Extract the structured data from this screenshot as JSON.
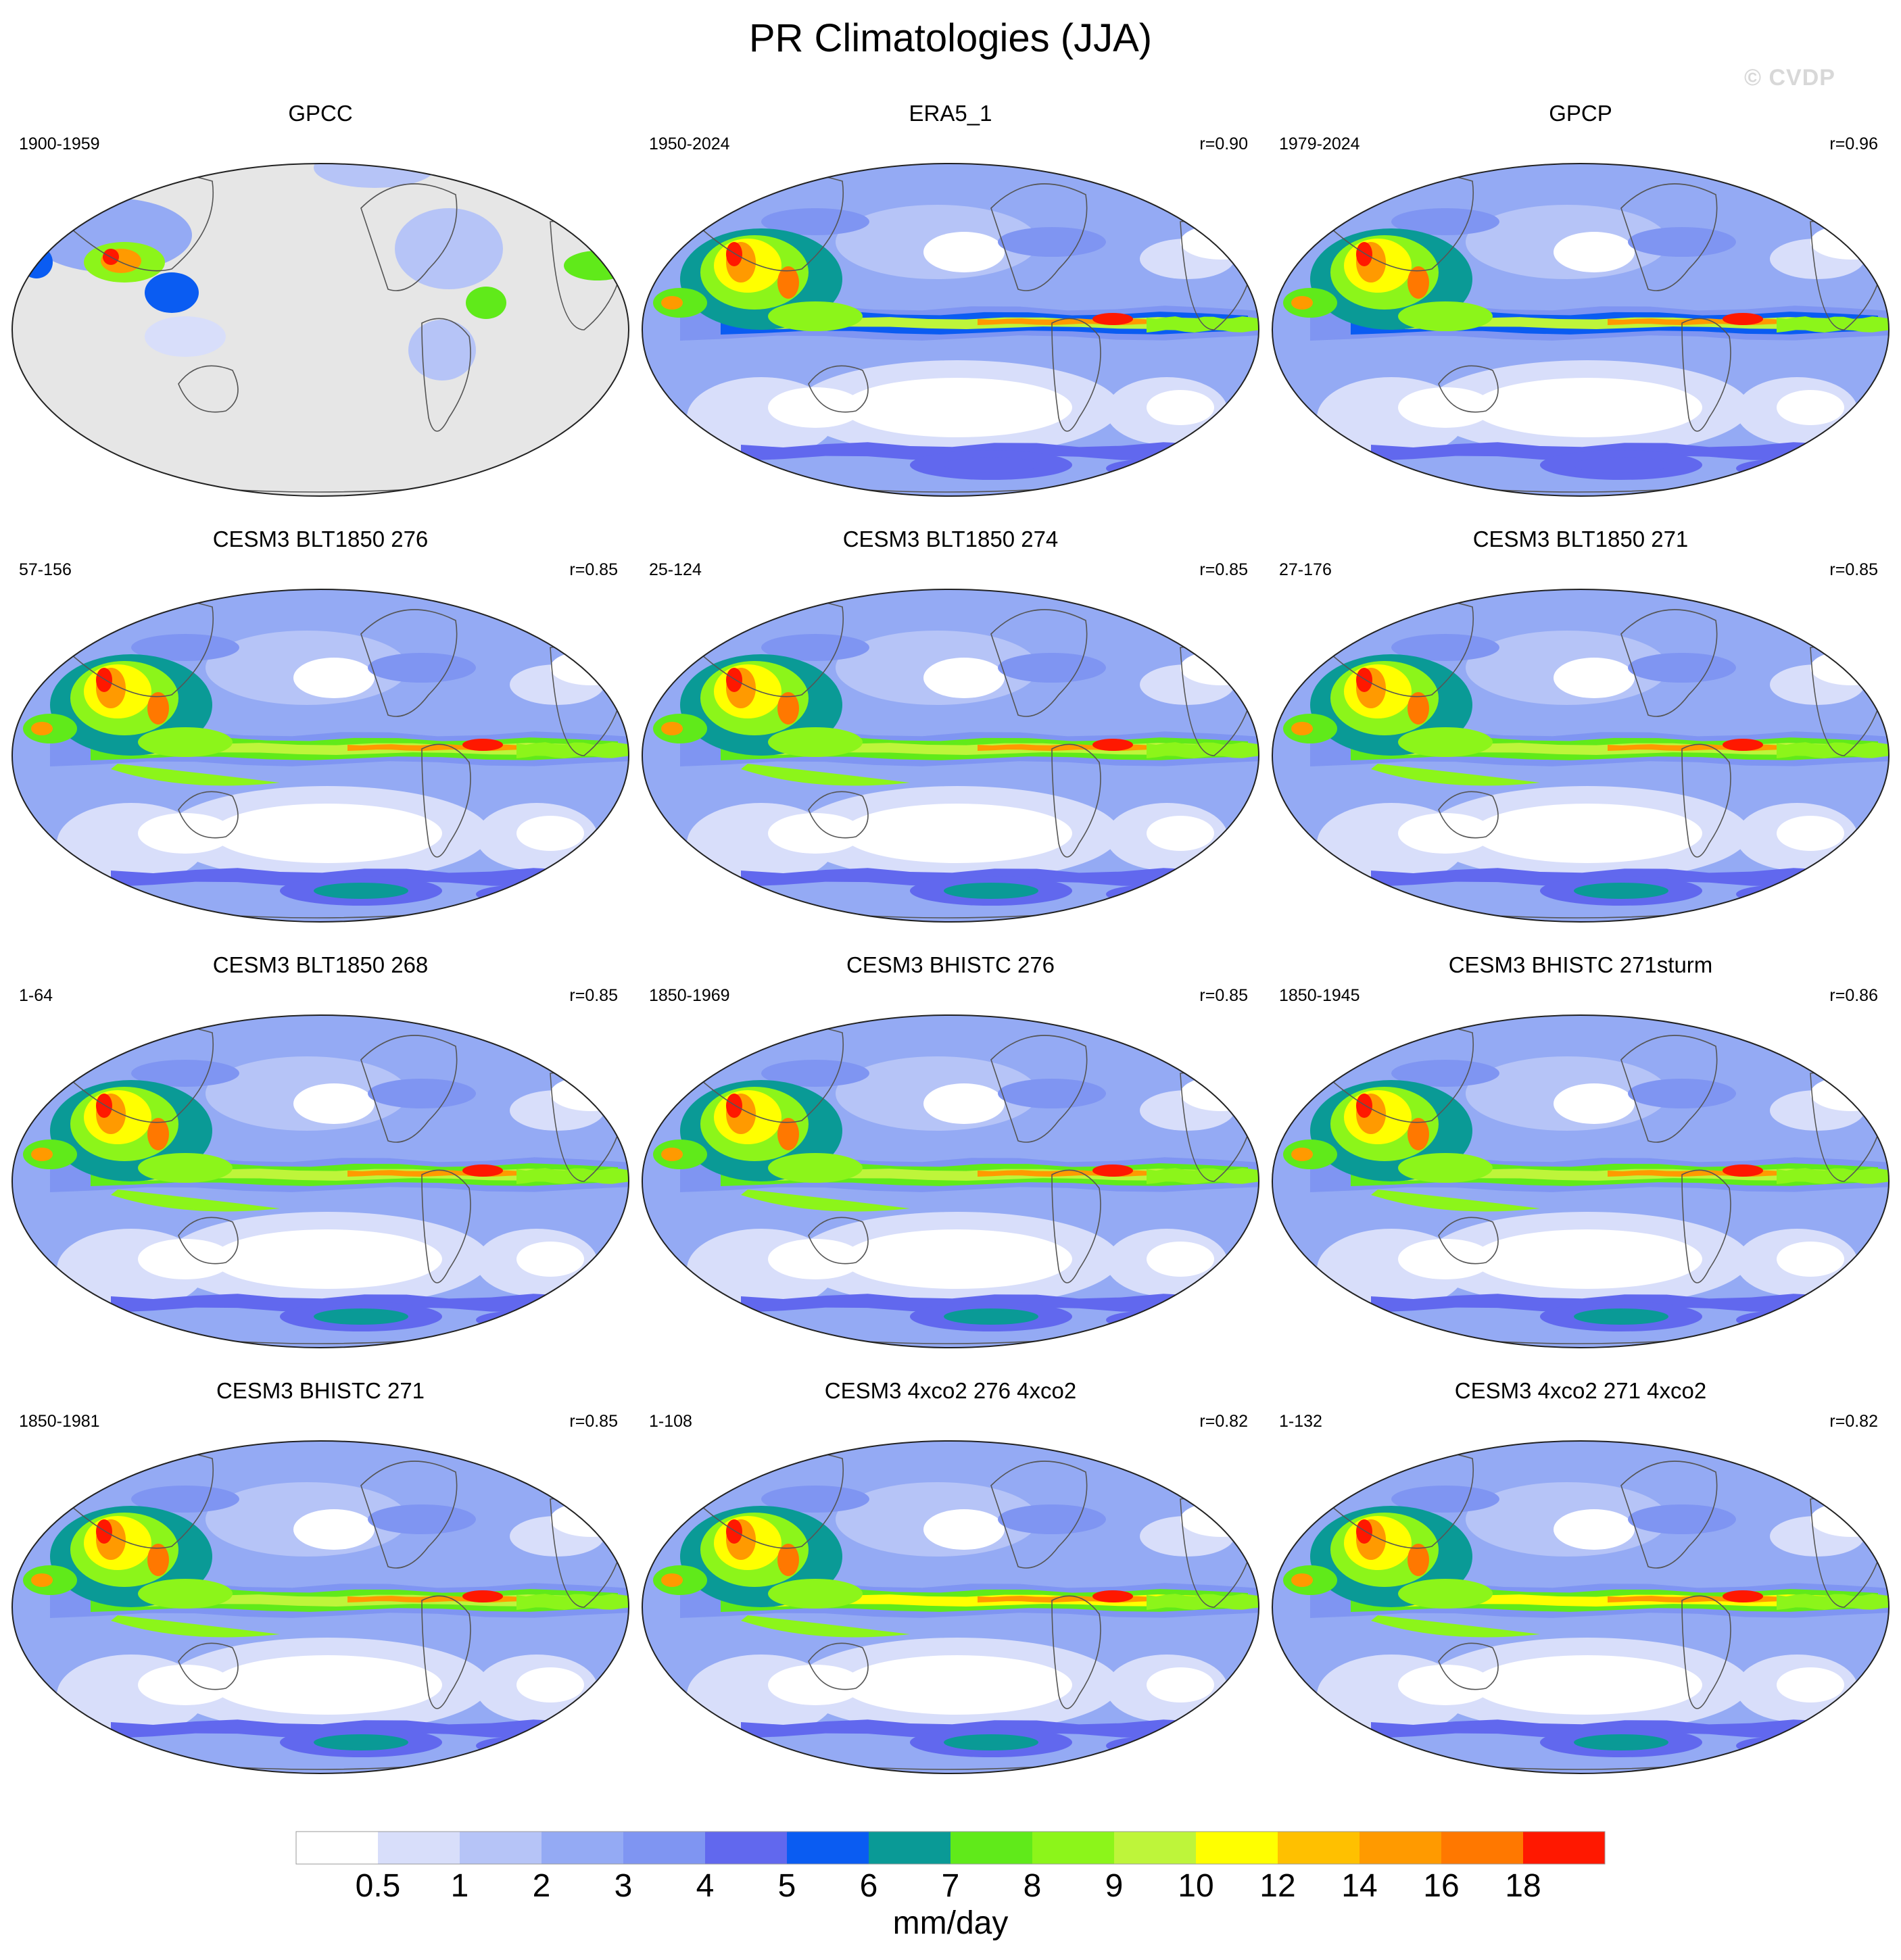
{
  "figure": {
    "title": "PR Climatologies (JJA)",
    "watermark": "© CVDP",
    "units": "mm/day"
  },
  "colorbar": {
    "levels": [
      "0.5",
      "1",
      "2",
      "3",
      "4",
      "5",
      "6",
      "7",
      "8",
      "9",
      "10",
      "12",
      "14",
      "16",
      "18"
    ],
    "colors": [
      "#ffffff",
      "#d8defa",
      "#b6c4f7",
      "#94aaf4",
      "#7f95f2",
      "#6168ee",
      "#0a5cf2",
      "#0a9a96",
      "#60ea1a",
      "#8cf51a",
      "#bef53a",
      "#ffff00",
      "#ffc000",
      "#ff9a00",
      "#ff7800",
      "#ff1800"
    ]
  },
  "panels": [
    {
      "title": "GPCC",
      "period": "1900-1959",
      "r": "",
      "variant": "obs_land"
    },
    {
      "title": "ERA5_1",
      "period": "1950-2024",
      "r": "r=0.90",
      "variant": "reanalysis"
    },
    {
      "title": "GPCP",
      "period": "1979-2024",
      "r": "r=0.96",
      "variant": "obs"
    },
    {
      "title": "CESM3 BLT1850 276",
      "period": "57-156",
      "r": "r=0.85",
      "variant": "model"
    },
    {
      "title": "CESM3 BLT1850 274",
      "period": "25-124",
      "r": "r=0.85",
      "variant": "model"
    },
    {
      "title": "CESM3 BLT1850 271",
      "period": "27-176",
      "r": "r=0.85",
      "variant": "model"
    },
    {
      "title": "CESM3 BLT1850 268",
      "period": "1-64",
      "r": "r=0.85",
      "variant": "model"
    },
    {
      "title": "CESM3 BHISTC 276",
      "period": "1850-1969",
      "r": "r=0.85",
      "variant": "model"
    },
    {
      "title": "CESM3 BHISTC 271sturm",
      "period": "1850-1945",
      "r": "r=0.86",
      "variant": "model"
    },
    {
      "title": "CESM3 BHISTC 271",
      "period": "1850-1981",
      "r": "r=0.85",
      "variant": "model"
    },
    {
      "title": "CESM3 4xco2 276 4xco2",
      "period": "1-108",
      "r": "r=0.82",
      "variant": "model_warm"
    },
    {
      "title": "CESM3 4xco2 271 4xco2",
      "period": "1-132",
      "r": "r=0.82",
      "variant": "model_warm"
    }
  ]
}
